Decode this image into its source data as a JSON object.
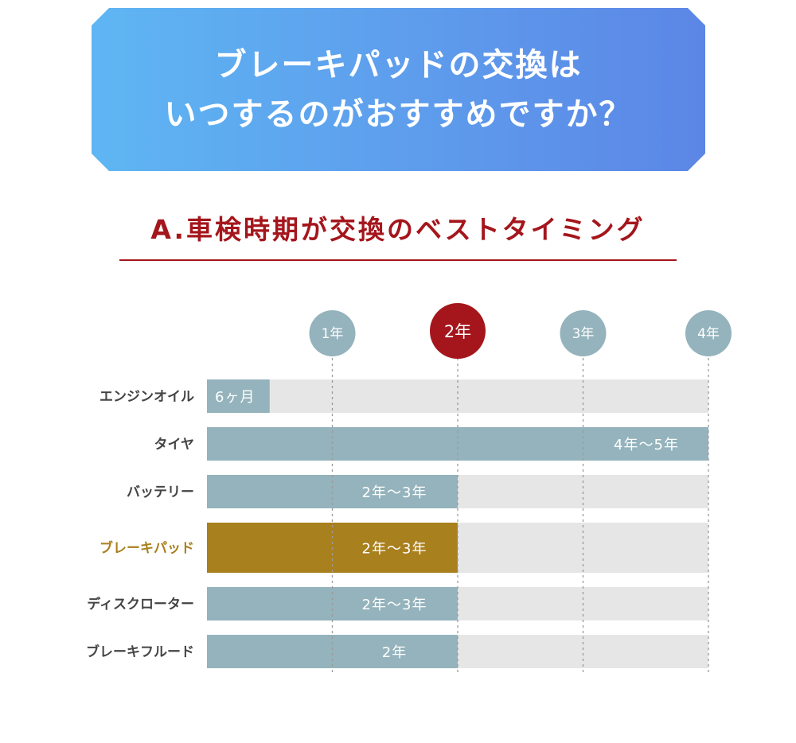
{
  "header": {
    "title_line1": "ブレーキパッドの交換は",
    "title_line2": "いつするのがおすすめですか？"
  },
  "answer": {
    "text": "A.車検時期が交換のベストタイミング"
  },
  "colors": {
    "banner_start": "#5fb6f3",
    "banner_end": "#5c86e6",
    "accent_red": "#a4161c",
    "bar_default": "#94b3bc",
    "bar_highlight": "#a9801e",
    "track": "#e6e6e6",
    "label_default": "#444444",
    "label_highlight": "#a9801e",
    "year_badge": "#94b3bc",
    "year_badge_highlight": "#a4161c"
  },
  "chart_data": {
    "type": "bar",
    "orientation": "horizontal",
    "x_unit": "years",
    "xlim": [
      0,
      4
    ],
    "x_ticks": [
      {
        "value": 1,
        "label": "1年",
        "highlight": false
      },
      {
        "value": 2,
        "label": "2年",
        "highlight": true
      },
      {
        "value": 3,
        "label": "3年",
        "highlight": false
      },
      {
        "value": 4,
        "label": "4年",
        "highlight": false
      }
    ],
    "categories": [
      "エンジンオイル",
      "タイヤ",
      "バッテリー",
      "ブレーキパッド",
      "ディスクローター",
      "ブレーキフルード"
    ],
    "values": [
      0.5,
      4,
      2,
      2,
      2,
      2
    ],
    "value_labels": [
      "6ヶ月",
      "4年〜5年",
      "2年〜3年",
      "2年〜3年",
      "2年〜3年",
      "2年"
    ],
    "highlight_index": 3,
    "grid": "dashed vertical at ticks",
    "legend": "none"
  }
}
